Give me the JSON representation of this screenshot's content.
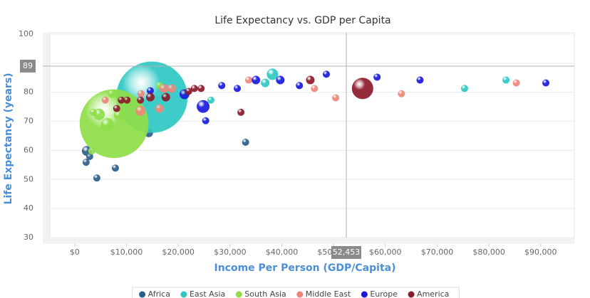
{
  "chart_data": {
    "type": "bubble",
    "title": "Life Expectancy vs. GDP per Capita",
    "x_label": "Income Per Person (GDP/Capita)",
    "y_label": "Life Expectancy (years)",
    "xlim": [
      -4800,
      96500
    ],
    "ylim": [
      30,
      100
    ],
    "xticks": [
      {
        "value": 0,
        "label": "$0"
      },
      {
        "value": 10000,
        "label": "$10,000"
      },
      {
        "value": 20000,
        "label": "$20,000"
      },
      {
        "value": 30000,
        "label": "$30,000"
      },
      {
        "value": 40000,
        "label": "$40,000"
      },
      {
        "value": 50000,
        "label": "$50,000"
      },
      {
        "value": 60000,
        "label": "$60,000"
      },
      {
        "value": 70000,
        "label": "$70,000"
      },
      {
        "value": 80000,
        "label": "$80,000"
      },
      {
        "value": 90000,
        "label": "$90,000"
      }
    ],
    "yticks": [
      30,
      40,
      50,
      60,
      70,
      80,
      90,
      100
    ],
    "ygrid": true,
    "xgrid": false,
    "crosshair": {
      "x": {
        "value": 52453,
        "label": "52,453"
      },
      "y": 89
    },
    "series": [
      {
        "name": "Africa",
        "color": "#2b5d8a",
        "x": [
          2340,
          2890,
          2200,
          4270,
          7850,
          14300,
          33000
        ],
        "y": [
          59.8,
          57.9,
          55.9,
          50.5,
          53.9,
          66.0,
          62.8
        ],
        "size": [
          27,
          14,
          14,
          14,
          14,
          20,
          14
        ]
      },
      {
        "name": "East Asia",
        "color": "#2ec8c4",
        "x": [
          14900,
          26300,
          38200,
          36800,
          75300,
          83300
        ],
        "y": [
          78.3,
          77.3,
          86.2,
          83.2,
          81.3,
          84.2
        ],
        "size": [
          1400,
          14,
          36,
          20,
          14,
          14
        ]
      },
      {
        "name": "South Asia",
        "color": "#8ede48",
        "x": [
          7600,
          4700,
          6300,
          3600,
          7200,
          3300,
          8500,
          16400
        ],
        "y": [
          69.2,
          72.4,
          68.9,
          73.1,
          79.5,
          59.8,
          72.1,
          82.3
        ],
        "size": [
          1300,
          36,
          45,
          14,
          20,
          14,
          27,
          14
        ]
      },
      {
        "name": "Middle East",
        "color": "#f0857a",
        "x": [
          5900,
          12700,
          12800,
          16400,
          17200,
          18700,
          33600,
          46300,
          50400,
          63100,
          85300
        ],
        "y": [
          77.3,
          73.6,
          79.5,
          74.4,
          81.3,
          81.3,
          84.2,
          81.3,
          78.1,
          79.5,
          83.2
        ],
        "size": [
          14,
          27,
          14,
          20,
          20,
          20,
          14,
          14,
          14,
          14,
          14
        ]
      },
      {
        "name": "Europe",
        "color": "#1a1adc",
        "x": [
          14600,
          21200,
          24800,
          25300,
          28400,
          31400,
          35000,
          39700,
          43400,
          48600,
          58400,
          66700,
          91000
        ],
        "y": [
          80.5,
          79.3,
          75.1,
          70.2,
          82.3,
          81.3,
          84.2,
          84.2,
          82.3,
          86.2,
          85.2,
          84.2,
          83.2
        ],
        "size": [
          14,
          27,
          45,
          14,
          14,
          14,
          20,
          20,
          14,
          14,
          14,
          14,
          14
        ]
      },
      {
        "name": "America",
        "color": "#8b1a2a",
        "x": [
          55600,
          8100,
          9000,
          10100,
          12700,
          14600,
          17600,
          22000,
          23100,
          24400,
          32100,
          45500
        ],
        "y": [
          81.3,
          74.4,
          77.3,
          77.3,
          77.3,
          78.3,
          78.3,
          80.3,
          81.3,
          81.3,
          73.1,
          84.2
        ],
        "size": [
          125,
          14,
          14,
          14,
          14,
          20,
          20,
          14,
          14,
          14,
          14,
          20
        ]
      }
    ]
  }
}
